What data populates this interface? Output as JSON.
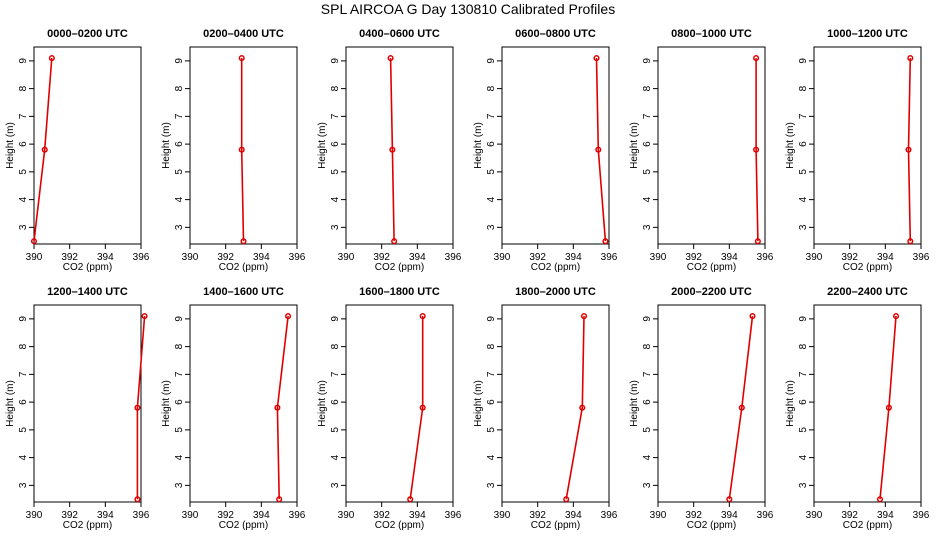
{
  "page": {
    "title": "SPL AIRCOA G  Day 130810  Calibrated Profiles"
  },
  "style": {
    "line_color": "#e00000",
    "marker_color": "#e00000",
    "axis_color": "#000000"
  },
  "chart_data": [
    {
      "type": "line",
      "title": "0000–0200 UTC",
      "xlabel": "CO2 (ppm)",
      "ylabel": "Height (m)",
      "xlim": [
        390,
        396
      ],
      "ylim": [
        2.4,
        9.5
      ],
      "xticks": [
        390,
        392,
        394,
        396
      ],
      "yticks": [
        3,
        4,
        5,
        6,
        7,
        8,
        9
      ],
      "grid": false,
      "series": [
        {
          "x": [
            390.0,
            390.6,
            391.0
          ],
          "y": [
            2.5,
            5.8,
            9.1
          ]
        }
      ]
    },
    {
      "type": "line",
      "title": "0200–0400 UTC",
      "xlabel": "CO2 (ppm)",
      "ylabel": "Height (m)",
      "xlim": [
        390,
        396
      ],
      "ylim": [
        2.4,
        9.5
      ],
      "xticks": [
        390,
        392,
        394,
        396
      ],
      "yticks": [
        3,
        4,
        5,
        6,
        7,
        8,
        9
      ],
      "grid": false,
      "series": [
        {
          "x": [
            393.0,
            392.9,
            392.9
          ],
          "y": [
            2.5,
            5.8,
            9.1
          ]
        }
      ]
    },
    {
      "type": "line",
      "title": "0400–0600 UTC",
      "xlabel": "CO2 (ppm)",
      "ylabel": "Height (m)",
      "xlim": [
        390,
        396
      ],
      "ylim": [
        2.4,
        9.5
      ],
      "xticks": [
        390,
        392,
        394,
        396
      ],
      "yticks": [
        3,
        4,
        5,
        6,
        7,
        8,
        9
      ],
      "grid": false,
      "series": [
        {
          "x": [
            392.7,
            392.6,
            392.5
          ],
          "y": [
            2.5,
            5.8,
            9.1
          ]
        }
      ]
    },
    {
      "type": "line",
      "title": "0600–0800 UTC",
      "xlabel": "CO2 (ppm)",
      "ylabel": "Height (m)",
      "xlim": [
        390,
        396
      ],
      "ylim": [
        2.4,
        9.5
      ],
      "xticks": [
        390,
        392,
        394,
        396
      ],
      "yticks": [
        3,
        4,
        5,
        6,
        7,
        8,
        9
      ],
      "grid": false,
      "series": [
        {
          "x": [
            395.8,
            395.4,
            395.3
          ],
          "y": [
            2.5,
            5.8,
            9.1
          ]
        }
      ]
    },
    {
      "type": "line",
      "title": "0800–1000 UTC",
      "xlabel": "CO2 (ppm)",
      "ylabel": "Height (m)",
      "xlim": [
        390,
        396
      ],
      "ylim": [
        2.4,
        9.5
      ],
      "xticks": [
        390,
        392,
        394,
        396
      ],
      "yticks": [
        3,
        4,
        5,
        6,
        7,
        8,
        9
      ],
      "grid": false,
      "series": [
        {
          "x": [
            395.6,
            395.5,
            395.5
          ],
          "y": [
            2.5,
            5.8,
            9.1
          ]
        }
      ]
    },
    {
      "type": "line",
      "title": "1000–1200 UTC",
      "xlabel": "CO2 (ppm)",
      "ylabel": "Height (m)",
      "xlim": [
        390,
        396
      ],
      "ylim": [
        2.4,
        9.5
      ],
      "xticks": [
        390,
        392,
        394,
        396
      ],
      "yticks": [
        3,
        4,
        5,
        6,
        7,
        8,
        9
      ],
      "grid": false,
      "series": [
        {
          "x": [
            395.4,
            395.3,
            395.4
          ],
          "y": [
            2.5,
            5.8,
            9.1
          ]
        }
      ]
    },
    {
      "type": "line",
      "title": "1200–1400 UTC",
      "xlabel": "CO2 (ppm)",
      "ylabel": "Height (m)",
      "xlim": [
        390,
        396
      ],
      "ylim": [
        2.4,
        9.5
      ],
      "xticks": [
        390,
        392,
        394,
        396
      ],
      "yticks": [
        3,
        4,
        5,
        6,
        7,
        8,
        9
      ],
      "grid": false,
      "series": [
        {
          "x": [
            395.8,
            395.8,
            396.2
          ],
          "y": [
            2.5,
            5.8,
            9.1
          ]
        }
      ]
    },
    {
      "type": "line",
      "title": "1400–1600 UTC",
      "xlabel": "CO2 (ppm)",
      "ylabel": "Height (m)",
      "xlim": [
        390,
        396
      ],
      "ylim": [
        2.4,
        9.5
      ],
      "xticks": [
        390,
        392,
        394,
        396
      ],
      "yticks": [
        3,
        4,
        5,
        6,
        7,
        8,
        9
      ],
      "grid": false,
      "series": [
        {
          "x": [
            395.0,
            394.9,
            395.5
          ],
          "y": [
            2.5,
            5.8,
            9.1
          ]
        }
      ]
    },
    {
      "type": "line",
      "title": "1600–1800 UTC",
      "xlabel": "CO2 (ppm)",
      "ylabel": "Height (m)",
      "xlim": [
        390,
        396
      ],
      "ylim": [
        2.4,
        9.5
      ],
      "xticks": [
        390,
        392,
        394,
        396
      ],
      "yticks": [
        3,
        4,
        5,
        6,
        7,
        8,
        9
      ],
      "grid": false,
      "series": [
        {
          "x": [
            393.6,
            394.3,
            394.3
          ],
          "y": [
            2.5,
            5.8,
            9.1
          ]
        }
      ]
    },
    {
      "type": "line",
      "title": "1800–2000 UTC",
      "xlabel": "CO2 (ppm)",
      "ylabel": "Height (m)",
      "xlim": [
        390,
        396
      ],
      "ylim": [
        2.4,
        9.5
      ],
      "xticks": [
        390,
        392,
        394,
        396
      ],
      "yticks": [
        3,
        4,
        5,
        6,
        7,
        8,
        9
      ],
      "grid": false,
      "series": [
        {
          "x": [
            393.6,
            394.5,
            394.6
          ],
          "y": [
            2.5,
            5.8,
            9.1
          ]
        }
      ]
    },
    {
      "type": "line",
      "title": "2000–2200 UTC",
      "xlabel": "CO2 (ppm)",
      "ylabel": "Height (m)",
      "xlim": [
        390,
        396
      ],
      "ylim": [
        2.4,
        9.5
      ],
      "xticks": [
        390,
        392,
        394,
        396
      ],
      "yticks": [
        3,
        4,
        5,
        6,
        7,
        8,
        9
      ],
      "grid": false,
      "series": [
        {
          "x": [
            394.0,
            394.7,
            395.3
          ],
          "y": [
            2.5,
            5.8,
            9.1
          ]
        }
      ]
    },
    {
      "type": "line",
      "title": "2200–2400 UTC",
      "xlabel": "CO2 (ppm)",
      "ylabel": "Height (m)",
      "xlim": [
        390,
        396
      ],
      "ylim": [
        2.4,
        9.5
      ],
      "xticks": [
        390,
        392,
        394,
        396
      ],
      "yticks": [
        3,
        4,
        5,
        6,
        7,
        8,
        9
      ],
      "grid": false,
      "series": [
        {
          "x": [
            393.7,
            394.2,
            394.6
          ],
          "y": [
            2.5,
            5.8,
            9.1
          ]
        }
      ]
    }
  ]
}
